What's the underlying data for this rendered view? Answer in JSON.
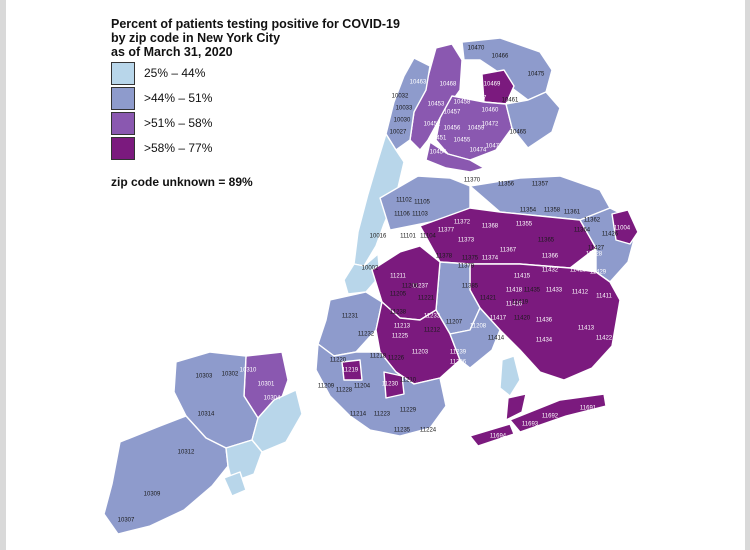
{
  "title_lines": [
    "Percent of patients testing positive for COVID-19",
    "by zip code in New York City",
    "as of March 31, 2020"
  ],
  "legend": [
    {
      "label": "25% – 44%",
      "color": "#b8d6ea"
    },
    {
      "label": ">44% – 51%",
      "color": "#8e9bcc"
    },
    {
      "label": ">51% – 58%",
      "color": "#8a58b0"
    },
    {
      "label": ">58% – 77%",
      "color": "#7b1a7e"
    }
  ],
  "unknown_note": "zip code unknown = 89%",
  "zip_labels": [
    {
      "zip": "10470",
      "cls": 2
    },
    {
      "zip": "10466",
      "cls": 2
    },
    {
      "zip": "10469",
      "cls": 4
    },
    {
      "zip": "10475",
      "cls": 2
    },
    {
      "zip": "10468",
      "cls": 4
    },
    {
      "zip": "10463",
      "cls": 3
    },
    {
      "zip": "10458",
      "cls": 3
    },
    {
      "zip": "10467",
      "cls": 3
    },
    {
      "zip": "10460",
      "cls": 3
    },
    {
      "zip": "10453",
      "cls": 4
    },
    {
      "zip": "10457",
      "cls": 3
    },
    {
      "zip": "10461",
      "cls": 2
    },
    {
      "zip": "10452",
      "cls": 4
    },
    {
      "zip": "10456",
      "cls": 3
    },
    {
      "zip": "10459",
      "cls": 3
    },
    {
      "zip": "10472",
      "cls": 3
    },
    {
      "zip": "10465",
      "cls": 2
    },
    {
      "zip": "10451",
      "cls": 3
    },
    {
      "zip": "10455",
      "cls": 3
    },
    {
      "zip": "10474",
      "cls": 3
    },
    {
      "zip": "10473",
      "cls": 3
    },
    {
      "zip": "10454",
      "cls": 3
    },
    {
      "zip": "10032",
      "cls": 2
    },
    {
      "zip": "10033",
      "cls": 2
    },
    {
      "zip": "10030",
      "cls": 2
    },
    {
      "zip": "10027",
      "cls": 2
    },
    {
      "zip": "11370",
      "cls": 2
    },
    {
      "zip": "11356",
      "cls": 2
    },
    {
      "zip": "11357",
      "cls": 2
    },
    {
      "zip": "11102",
      "cls": 1
    },
    {
      "zip": "11105",
      "cls": 2
    },
    {
      "zip": "11369",
      "cls": 4
    },
    {
      "zip": "11106",
      "cls": 2
    },
    {
      "zip": "11103",
      "cls": 2
    },
    {
      "zip": "11354",
      "cls": 2
    },
    {
      "zip": "11358",
      "cls": 2
    },
    {
      "zip": "11361",
      "cls": 2
    },
    {
      "zip": "11362",
      "cls": 2
    },
    {
      "zip": "11004",
      "cls": 4
    },
    {
      "zip": "11372",
      "cls": 4
    },
    {
      "zip": "11368",
      "cls": 4
    },
    {
      "zip": "11355",
      "cls": 4
    },
    {
      "zip": "11364",
      "cls": 2
    },
    {
      "zip": "11426",
      "cls": 2
    },
    {
      "zip": "11377",
      "cls": 4
    },
    {
      "zip": "11101",
      "cls": 2
    },
    {
      "zip": "11104",
      "cls": 2
    },
    {
      "zip": "11373",
      "cls": 4
    },
    {
      "zip": "11365",
      "cls": 2
    },
    {
      "zip": "11427",
      "cls": 2
    },
    {
      "zip": "10016",
      "cls": 1
    },
    {
      "zip": "11367",
      "cls": 4
    },
    {
      "zip": "11366",
      "cls": 3
    },
    {
      "zip": "11428",
      "cls": 4
    },
    {
      "zip": "11378",
      "cls": 2
    },
    {
      "zip": "11374",
      "cls": 4
    },
    {
      "zip": "11375",
      "cls": 2
    },
    {
      "zip": "11379",
      "cls": 2
    },
    {
      "zip": "11415",
      "cls": 4
    },
    {
      "zip": "11432",
      "cls": 4
    },
    {
      "zip": "11423",
      "cls": 4
    },
    {
      "zip": "11429",
      "cls": 4
    },
    {
      "zip": "10002",
      "cls": 1
    },
    {
      "zip": "11211",
      "cls": 4
    },
    {
      "zip": "11237",
      "cls": 4
    },
    {
      "zip": "11385",
      "cls": 2
    },
    {
      "zip": "11418",
      "cls": 4
    },
    {
      "zip": "11435",
      "cls": 2
    },
    {
      "zip": "11433",
      "cls": 4
    },
    {
      "zip": "11412",
      "cls": 4
    },
    {
      "zip": "11411",
      "cls": 4
    },
    {
      "zip": "11206",
      "cls": 2
    },
    {
      "zip": "11416",
      "cls": 4
    },
    {
      "zip": "11421",
      "cls": 2
    },
    {
      "zip": "11419",
      "cls": 2
    },
    {
      "zip": "11205",
      "cls": 2
    },
    {
      "zip": "11221",
      "cls": 2
    },
    {
      "zip": "11207",
      "cls": 2
    },
    {
      "zip": "11231",
      "cls": 2
    },
    {
      "zip": "11238",
      "cls": 2
    },
    {
      "zip": "11233",
      "cls": 4
    },
    {
      "zip": "11417",
      "cls": 4
    },
    {
      "zip": "11420",
      "cls": 2
    },
    {
      "zip": "11436",
      "cls": 4
    },
    {
      "zip": "11213",
      "cls": 4
    },
    {
      "zip": "11212",
      "cls": 2
    },
    {
      "zip": "11208",
      "cls": 4
    },
    {
      "zip": "11413",
      "cls": 4
    },
    {
      "zip": "11225",
      "cls": 4
    },
    {
      "zip": "11414",
      "cls": 2
    },
    {
      "zip": "11434",
      "cls": 4
    },
    {
      "zip": "11422",
      "cls": 4
    },
    {
      "zip": "11232",
      "cls": 2
    },
    {
      "zip": "11203",
      "cls": 4
    },
    {
      "zip": "11239",
      "cls": 4
    },
    {
      "zip": "11220",
      "cls": 2
    },
    {
      "zip": "11218",
      "cls": 2
    },
    {
      "zip": "11226",
      "cls": 2
    },
    {
      "zip": "11236",
      "cls": 4
    },
    {
      "zip": "11219",
      "cls": 4
    },
    {
      "zip": "10303",
      "cls": 2
    },
    {
      "zip": "10310",
      "cls": 3
    },
    {
      "zip": "10302",
      "cls": 2
    },
    {
      "zip": "10301",
      "cls": 3
    },
    {
      "zip": "11209",
      "cls": 2
    },
    {
      "zip": "11228",
      "cls": 2
    },
    {
      "zip": "11204",
      "cls": 2
    },
    {
      "zip": "11230",
      "cls": 4
    },
    {
      "zip": "11210",
      "cls": 2
    },
    {
      "zip": "10304",
      "cls": 3
    },
    {
      "zip": "10314",
      "cls": 2
    },
    {
      "zip": "11214",
      "cls": 2
    },
    {
      "zip": "11223",
      "cls": 2
    },
    {
      "zip": "11229",
      "cls": 2
    },
    {
      "zip": "11692",
      "cls": 4
    },
    {
      "zip": "11691",
      "cls": 4
    },
    {
      "zip": "11693",
      "cls": 4
    },
    {
      "zip": "11694",
      "cls": 4
    },
    {
      "zip": "11235",
      "cls": 2
    },
    {
      "zip": "11224",
      "cls": 2
    },
    {
      "zip": "10312",
      "cls": 2
    },
    {
      "zip": "10309",
      "cls": 2
    },
    {
      "zip": "10307",
      "cls": 2
    }
  ]
}
